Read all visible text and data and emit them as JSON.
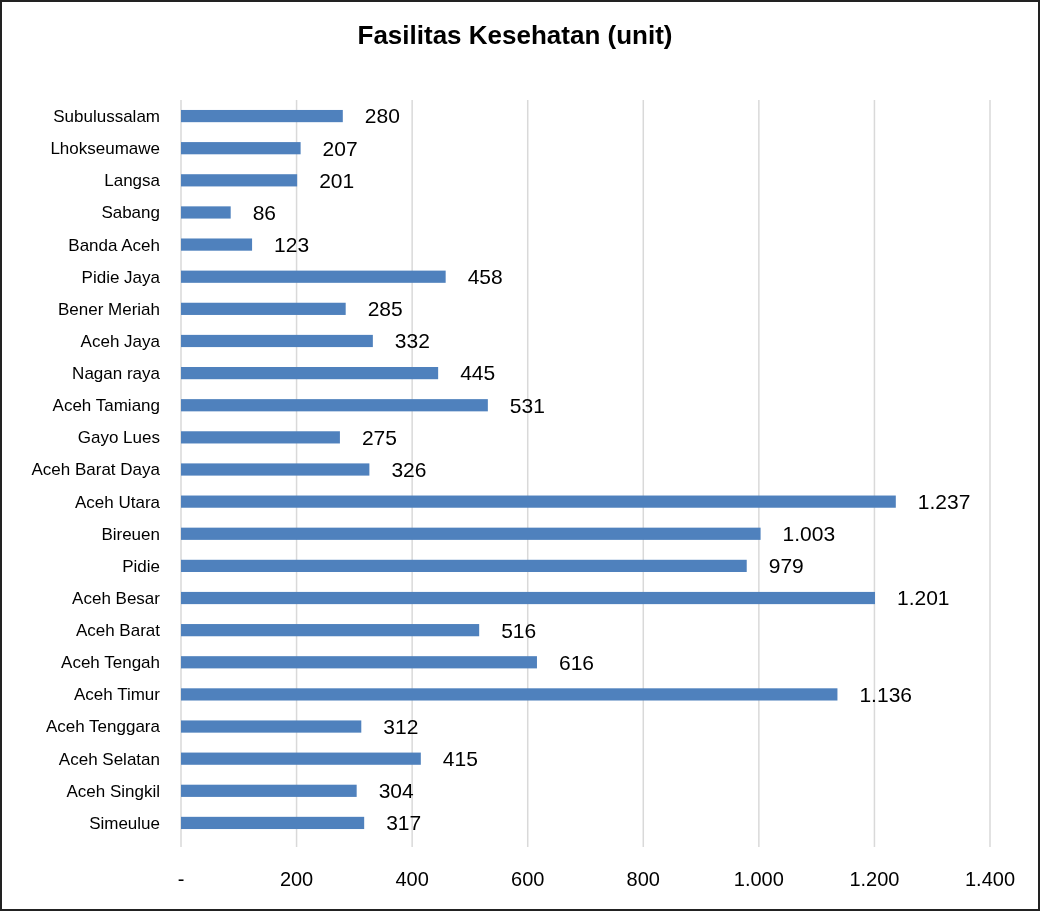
{
  "chart_data": {
    "type": "bar",
    "orientation": "horizontal",
    "title": "Fasilitas Kesehatan (unit)",
    "categories": [
      "Subulussalam",
      "Lhokseumawe",
      "Langsa",
      "Sabang",
      "Banda Aceh",
      "Pidie Jaya",
      "Bener Meriah",
      "Aceh Jaya",
      "Nagan raya",
      "Aceh Tamiang",
      "Gayo Lues",
      "Aceh Barat Daya",
      "Aceh Utara",
      "Bireuen",
      "Pidie",
      "Aceh Besar",
      "Aceh Barat",
      "Aceh Tengah",
      "Aceh Timur",
      "Aceh Tenggara",
      "Aceh Selatan",
      "Aceh Singkil",
      "Simeulue"
    ],
    "values": [
      280,
      207,
      201,
      86,
      123,
      458,
      285,
      332,
      445,
      531,
      275,
      326,
      1237,
      1003,
      979,
      1201,
      516,
      616,
      1136,
      312,
      415,
      304,
      317
    ],
    "value_labels": [
      "280",
      "207",
      "201",
      "86",
      "123",
      "458",
      "285",
      "332",
      "445",
      "531",
      "275",
      "326",
      "1.237",
      "1.003",
      "979",
      "1.201",
      "516",
      "616",
      "1.136",
      "312",
      "415",
      "304",
      "317"
    ],
    "color": "#4f81bd",
    "xlim": [
      0,
      1400
    ],
    "xticks": [
      {
        "value": 0,
        "label": "-"
      },
      200,
      400,
      600,
      800,
      {
        "value": 1000,
        "label": "1.000"
      },
      {
        "value": 1200,
        "label": "1.200"
      },
      {
        "value": 1400,
        "label": "1.400"
      }
    ],
    "grid": "x"
  }
}
